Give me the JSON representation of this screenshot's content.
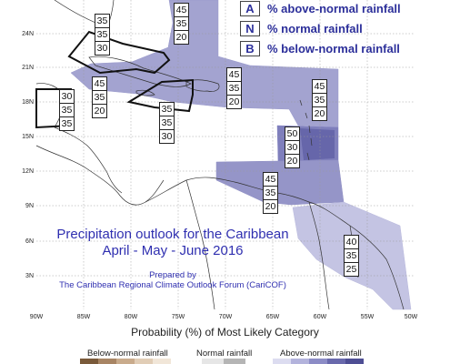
{
  "legend": {
    "items": [
      {
        "letter": "A",
        "text": "% above-normal rainfall"
      },
      {
        "letter": "N",
        "text": "% normal rainfall"
      },
      {
        "letter": "B",
        "text": "% below-normal rainfall"
      }
    ]
  },
  "title_lines": [
    "Precipitation outlook for the Caribbean",
    "April - May - June 2016"
  ],
  "credit_lines": [
    "Prepared by",
    "The Caribbean Regional Climate Outlook Forum (CariCOF)"
  ],
  "lat_labels": [
    "24N",
    "21N",
    "18N",
    "15N",
    "12N",
    "9N",
    "6N",
    "3N"
  ],
  "lon_labels": [
    "90W",
    "85W",
    "80W",
    "75W",
    "70W",
    "65W",
    "60W",
    "55W",
    "50W"
  ],
  "forecast_boxes": [
    {
      "id": "bahamas",
      "values": [
        "45",
        "35",
        "20"
      ]
    },
    {
      "id": "cuba",
      "values": [
        "35",
        "35",
        "30"
      ]
    },
    {
      "id": "belize",
      "values": [
        "30",
        "35",
        "35"
      ]
    },
    {
      "id": "jamaica",
      "values": [
        "45",
        "35",
        "20"
      ]
    },
    {
      "id": "south-of-hispaniola",
      "values": [
        "35",
        "35",
        "30"
      ]
    },
    {
      "id": "puerto-rico",
      "values": [
        "45",
        "35",
        "20"
      ]
    },
    {
      "id": "leeward-islands",
      "values": [
        "45",
        "35",
        "20"
      ]
    },
    {
      "id": "windward-islands",
      "values": [
        "50",
        "30",
        "20"
      ]
    },
    {
      "id": "trinidad-tobago",
      "values": [
        "45",
        "35",
        "20"
      ]
    },
    {
      "id": "guianas",
      "values": [
        "40",
        "35",
        "25"
      ]
    }
  ],
  "probability_title": "Probability (%) of Most Likely Category",
  "scale": {
    "below_label": "Below-normal rainfall",
    "normal_label": "Normal rainfall",
    "above_label": "Above-normal rainfall",
    "below_colors": [
      "#7a5a3a",
      "#a88564",
      "#c9ab8c",
      "#e1cdb6",
      "#f1e6d8"
    ],
    "normal_colors": [
      "#e6e6e6",
      "#b5b5b5"
    ],
    "above_colors": [
      "#dcdcf0",
      "#b3b3dc",
      "#8c8cc6",
      "#6969ac",
      "#4e4e94"
    ]
  },
  "colors": {
    "light_region": "#c9c9e6",
    "mid_region": "#a3a3d0",
    "dark_region": "#7272b4",
    "text_accent": "#2f2fb0"
  }
}
